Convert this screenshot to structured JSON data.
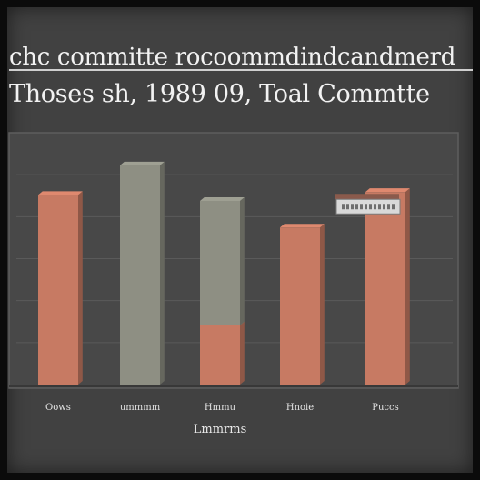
{
  "header": {
    "title": "chc committe rocoommdindcandmerd",
    "subtitle": "Thoses sh, 1989 09, Toal  Commtte"
  },
  "colors": {
    "background": "#414141",
    "frame": "#0b0b0b",
    "plot_bg": "#484848",
    "grid": "#5a5a5a",
    "salmon": "#c77a63",
    "sage": "#8e8f83"
  },
  "chart_data": {
    "type": "bar",
    "stacked": true,
    "categories": [
      "Oows",
      "ummmm",
      "Hmmu",
      "Hnoie",
      "Puccs"
    ],
    "x_label_secondary": "Lmmrms",
    "series": [
      {
        "values": [
          64,
          0,
          20,
          53,
          65
        ]
      },
      {
        "values": [
          0,
          74,
          42,
          0,
          0
        ]
      }
    ],
    "ylim": [
      0,
      85
    ],
    "grid": true,
    "legend": "none",
    "annotation": {
      "category_index": 4,
      "value": 57
    }
  }
}
